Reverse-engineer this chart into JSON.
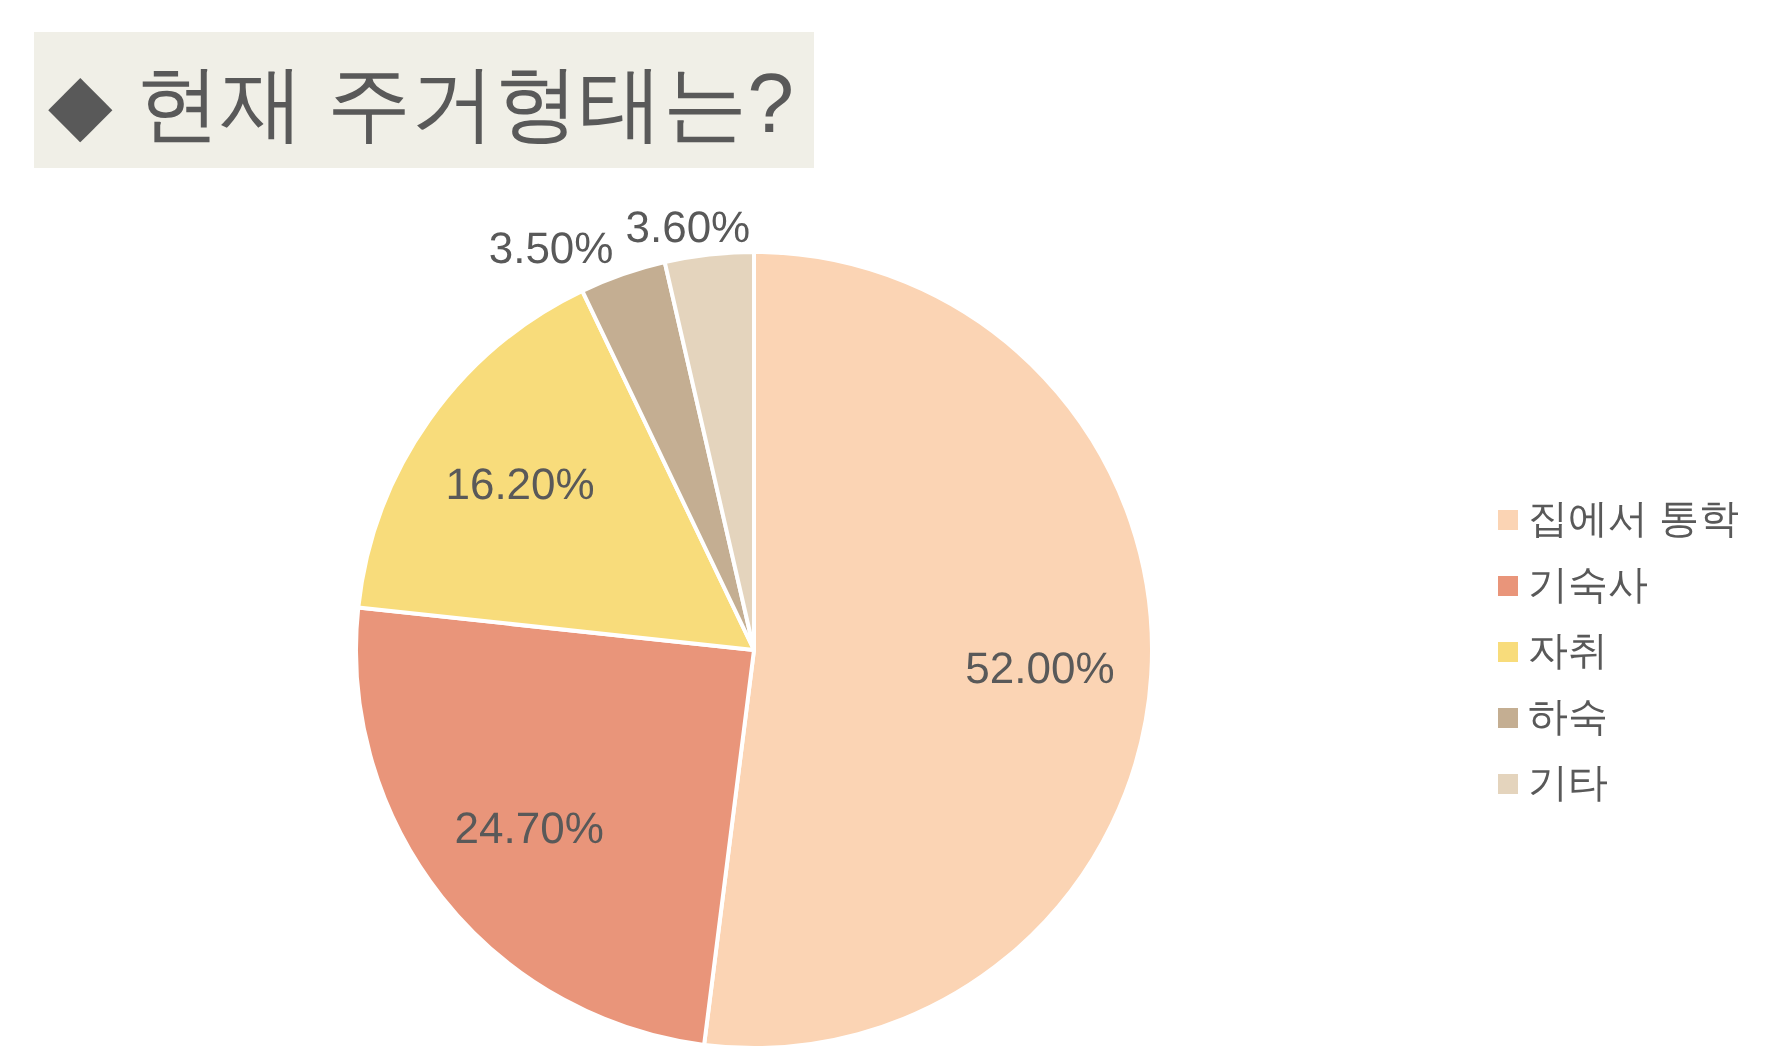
{
  "chart_data": {
    "type": "pie",
    "title": "◆ 현재 주거형태는?",
    "categories": [
      "집에서 통학",
      "기숙사",
      "자취",
      "하숙",
      "기타"
    ],
    "values": [
      52,
      24.7,
      16.2,
      3.5,
      3.6
    ],
    "value_labels": [
      "52.00%",
      "24.70%",
      "16.20%",
      "3.50%",
      "3.60%"
    ],
    "colors": [
      "#fbd4b4",
      "#e9957a",
      "#f8dc7b",
      "#c4ae92",
      "#e4d4bd"
    ],
    "legend": "right"
  }
}
